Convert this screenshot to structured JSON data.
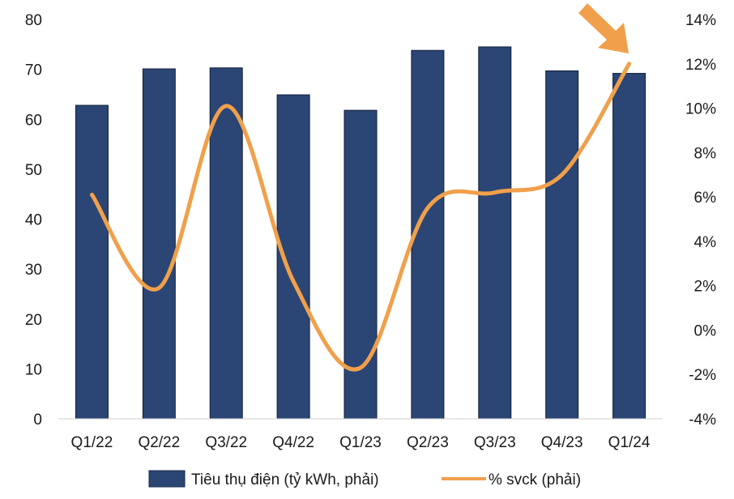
{
  "chart_data": {
    "type": "bar",
    "categories": [
      "Q1/22",
      "Q2/22",
      "Q3/22",
      "Q4/22",
      "Q1/23",
      "Q2/23",
      "Q3/23",
      "Q4/23",
      "Q1/24"
    ],
    "series": [
      {
        "name": "Tiêu thụ điện (tỷ kWh, phải)",
        "type": "bar",
        "axis": "left",
        "color": "#2b4574",
        "values": [
          62.8,
          70.1,
          70.3,
          64.9,
          61.8,
          73.8,
          74.5,
          69.7,
          69.2
        ]
      },
      {
        "name": "% svck (phải)",
        "type": "line",
        "axis": "right",
        "color": "#f0a04b",
        "values": [
          6.1,
          1.9,
          10.1,
          2.2,
          -1.7,
          5.5,
          6.2,
          7.0,
          12.0
        ]
      }
    ],
    "y_left": {
      "min": 0,
      "max": 80,
      "ticks": [
        0,
        10,
        20,
        30,
        40,
        50,
        60,
        70,
        80
      ],
      "tick_labels": [
        "0",
        "10",
        "20",
        "30",
        "40",
        "50",
        "60",
        "70",
        "80"
      ]
    },
    "y_right": {
      "min": -4,
      "max": 14,
      "ticks": [
        -4,
        -2,
        0,
        2,
        4,
        6,
        8,
        10,
        12,
        14
      ],
      "tick_labels": [
        "-4%",
        "-2%",
        "0%",
        "2%",
        "4%",
        "6%",
        "8%",
        "10%",
        "12%",
        "14%"
      ]
    },
    "grid": false,
    "legend_position": "bottom",
    "annotations": [
      {
        "type": "arrow",
        "color": "#f0a04b",
        "target": "Q1/24"
      }
    ]
  }
}
